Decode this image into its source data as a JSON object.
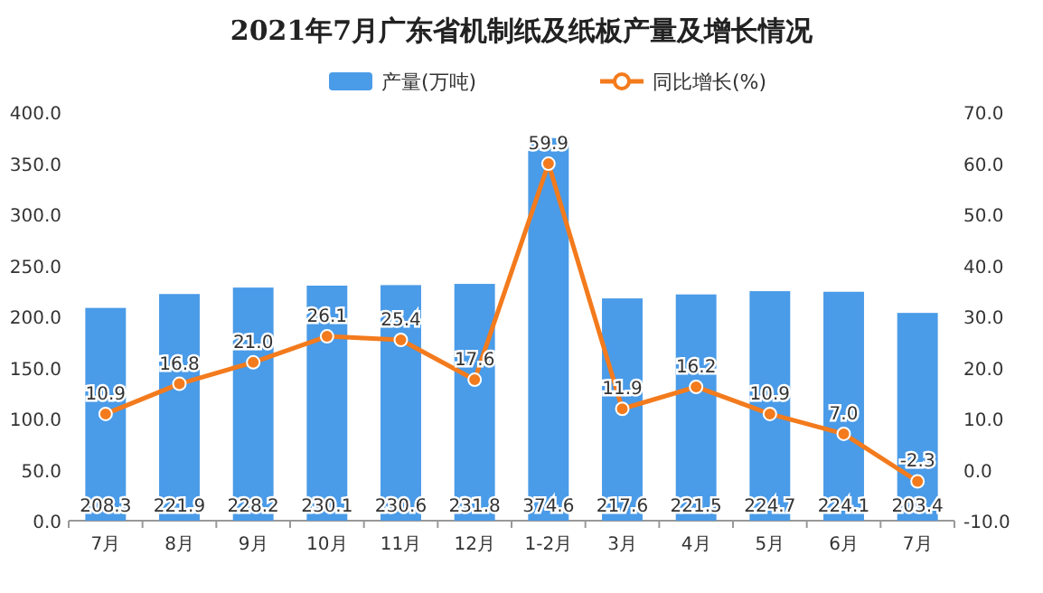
{
  "chart_data": {
    "type": "bar",
    "title": "2021年7月广东省机制纸及纸板产量及增长情况",
    "categories": [
      "7月",
      "8月",
      "9月",
      "10月",
      "11月",
      "12月",
      "1-2月",
      "3月",
      "4月",
      "5月",
      "6月",
      "7月"
    ],
    "series": [
      {
        "name": "产量(万吨)",
        "color": "#4a9be8",
        "values": [
          208.3,
          221.9,
          228.2,
          230.1,
          230.6,
          231.8,
          374.6,
          217.6,
          221.5,
          224.7,
          224.1,
          203.4
        ],
        "value_labels": [
          "208.3",
          "221.9",
          "228.2",
          "230.1",
          "230.6",
          "231.8",
          "374.6",
          "217.6",
          "221.5",
          "224.7",
          "224.1",
          "203.4"
        ]
      },
      {
        "name": "同比增长(%)",
        "type": "line",
        "axis": "y2",
        "marker": "circle",
        "color": "#f37b1d",
        "values": [
          10.9,
          16.8,
          21.0,
          26.1,
          25.4,
          17.6,
          59.9,
          11.9,
          16.2,
          10.9,
          7.0,
          -2.3
        ],
        "value_labels": [
          "10.9",
          "16.8",
          "21.0",
          "26.1",
          "25.4",
          "17.6",
          "59.9",
          "11.9",
          "16.2",
          "10.9",
          "7.0",
          "-2.3"
        ]
      }
    ],
    "ylim": [
      0,
      400
    ],
    "yticks": [
      {
        "value": 0,
        "label": "0.0"
      },
      {
        "value": 50,
        "label": "50.0"
      },
      {
        "value": 100,
        "label": "100.0"
      },
      {
        "value": 150,
        "label": "150.0"
      },
      {
        "value": 200,
        "label": "200.0"
      },
      {
        "value": 250,
        "label": "250.0"
      },
      {
        "value": 300,
        "label": "300.0"
      },
      {
        "value": 350,
        "label": "350.0"
      },
      {
        "value": 400,
        "label": "400.0"
      }
    ],
    "y2lim": [
      -10,
      70
    ],
    "y2ticks": [
      {
        "value": -10,
        "label": "-10.0"
      },
      {
        "value": 0,
        "label": "0.0"
      },
      {
        "value": 10,
        "label": "10.0"
      },
      {
        "value": 20,
        "label": "20.0"
      },
      {
        "value": 30,
        "label": "30.0"
      },
      {
        "value": 40,
        "label": "40.0"
      },
      {
        "value": 50,
        "label": "50.0"
      },
      {
        "value": 60,
        "label": "60.0"
      },
      {
        "value": 70,
        "label": "70.0"
      }
    ],
    "legend": "top"
  }
}
